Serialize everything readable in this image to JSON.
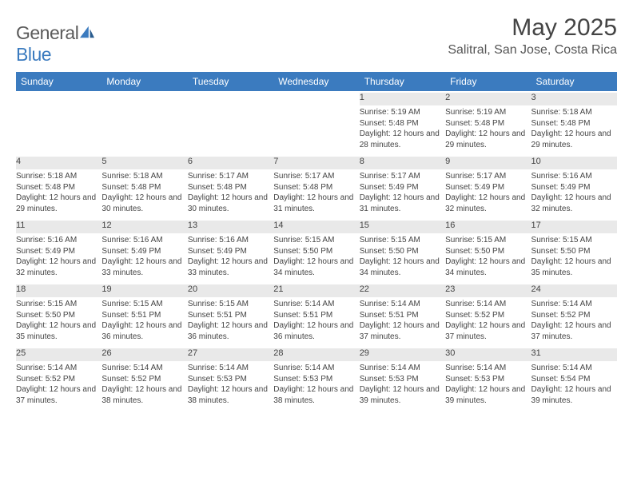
{
  "logo": {
    "text_general": "General",
    "text_blue": "Blue"
  },
  "title": "May 2025",
  "location": "Salitral, San Jose, Costa Rica",
  "colors": {
    "header_bg": "#3b7bbf",
    "header_text": "#ffffff",
    "daynum_bg": "#e9e9e9",
    "text": "#444444",
    "page_bg": "#ffffff"
  },
  "typography": {
    "title_fontsize": 30,
    "location_fontsize": 16,
    "header_fontsize": 12,
    "daynum_fontsize": 11,
    "body_fontsize": 10
  },
  "weekdays": [
    "Sunday",
    "Monday",
    "Tuesday",
    "Wednesday",
    "Thursday",
    "Friday",
    "Saturday"
  ],
  "weeks": [
    [
      null,
      null,
      null,
      null,
      {
        "n": "1",
        "sr": "Sunrise: 5:19 AM",
        "ss": "Sunset: 5:48 PM",
        "dl": "Daylight: 12 hours and 28 minutes."
      },
      {
        "n": "2",
        "sr": "Sunrise: 5:19 AM",
        "ss": "Sunset: 5:48 PM",
        "dl": "Daylight: 12 hours and 29 minutes."
      },
      {
        "n": "3",
        "sr": "Sunrise: 5:18 AM",
        "ss": "Sunset: 5:48 PM",
        "dl": "Daylight: 12 hours and 29 minutes."
      }
    ],
    [
      {
        "n": "4",
        "sr": "Sunrise: 5:18 AM",
        "ss": "Sunset: 5:48 PM",
        "dl": "Daylight: 12 hours and 29 minutes."
      },
      {
        "n": "5",
        "sr": "Sunrise: 5:18 AM",
        "ss": "Sunset: 5:48 PM",
        "dl": "Daylight: 12 hours and 30 minutes."
      },
      {
        "n": "6",
        "sr": "Sunrise: 5:17 AM",
        "ss": "Sunset: 5:48 PM",
        "dl": "Daylight: 12 hours and 30 minutes."
      },
      {
        "n": "7",
        "sr": "Sunrise: 5:17 AM",
        "ss": "Sunset: 5:48 PM",
        "dl": "Daylight: 12 hours and 31 minutes."
      },
      {
        "n": "8",
        "sr": "Sunrise: 5:17 AM",
        "ss": "Sunset: 5:49 PM",
        "dl": "Daylight: 12 hours and 31 minutes."
      },
      {
        "n": "9",
        "sr": "Sunrise: 5:17 AM",
        "ss": "Sunset: 5:49 PM",
        "dl": "Daylight: 12 hours and 32 minutes."
      },
      {
        "n": "10",
        "sr": "Sunrise: 5:16 AM",
        "ss": "Sunset: 5:49 PM",
        "dl": "Daylight: 12 hours and 32 minutes."
      }
    ],
    [
      {
        "n": "11",
        "sr": "Sunrise: 5:16 AM",
        "ss": "Sunset: 5:49 PM",
        "dl": "Daylight: 12 hours and 32 minutes."
      },
      {
        "n": "12",
        "sr": "Sunrise: 5:16 AM",
        "ss": "Sunset: 5:49 PM",
        "dl": "Daylight: 12 hours and 33 minutes."
      },
      {
        "n": "13",
        "sr": "Sunrise: 5:16 AM",
        "ss": "Sunset: 5:49 PM",
        "dl": "Daylight: 12 hours and 33 minutes."
      },
      {
        "n": "14",
        "sr": "Sunrise: 5:15 AM",
        "ss": "Sunset: 5:50 PM",
        "dl": "Daylight: 12 hours and 34 minutes."
      },
      {
        "n": "15",
        "sr": "Sunrise: 5:15 AM",
        "ss": "Sunset: 5:50 PM",
        "dl": "Daylight: 12 hours and 34 minutes."
      },
      {
        "n": "16",
        "sr": "Sunrise: 5:15 AM",
        "ss": "Sunset: 5:50 PM",
        "dl": "Daylight: 12 hours and 34 minutes."
      },
      {
        "n": "17",
        "sr": "Sunrise: 5:15 AM",
        "ss": "Sunset: 5:50 PM",
        "dl": "Daylight: 12 hours and 35 minutes."
      }
    ],
    [
      {
        "n": "18",
        "sr": "Sunrise: 5:15 AM",
        "ss": "Sunset: 5:50 PM",
        "dl": "Daylight: 12 hours and 35 minutes."
      },
      {
        "n": "19",
        "sr": "Sunrise: 5:15 AM",
        "ss": "Sunset: 5:51 PM",
        "dl": "Daylight: 12 hours and 36 minutes."
      },
      {
        "n": "20",
        "sr": "Sunrise: 5:15 AM",
        "ss": "Sunset: 5:51 PM",
        "dl": "Daylight: 12 hours and 36 minutes."
      },
      {
        "n": "21",
        "sr": "Sunrise: 5:14 AM",
        "ss": "Sunset: 5:51 PM",
        "dl": "Daylight: 12 hours and 36 minutes."
      },
      {
        "n": "22",
        "sr": "Sunrise: 5:14 AM",
        "ss": "Sunset: 5:51 PM",
        "dl": "Daylight: 12 hours and 37 minutes."
      },
      {
        "n": "23",
        "sr": "Sunrise: 5:14 AM",
        "ss": "Sunset: 5:52 PM",
        "dl": "Daylight: 12 hours and 37 minutes."
      },
      {
        "n": "24",
        "sr": "Sunrise: 5:14 AM",
        "ss": "Sunset: 5:52 PM",
        "dl": "Daylight: 12 hours and 37 minutes."
      }
    ],
    [
      {
        "n": "25",
        "sr": "Sunrise: 5:14 AM",
        "ss": "Sunset: 5:52 PM",
        "dl": "Daylight: 12 hours and 37 minutes."
      },
      {
        "n": "26",
        "sr": "Sunrise: 5:14 AM",
        "ss": "Sunset: 5:52 PM",
        "dl": "Daylight: 12 hours and 38 minutes."
      },
      {
        "n": "27",
        "sr": "Sunrise: 5:14 AM",
        "ss": "Sunset: 5:53 PM",
        "dl": "Daylight: 12 hours and 38 minutes."
      },
      {
        "n": "28",
        "sr": "Sunrise: 5:14 AM",
        "ss": "Sunset: 5:53 PM",
        "dl": "Daylight: 12 hours and 38 minutes."
      },
      {
        "n": "29",
        "sr": "Sunrise: 5:14 AM",
        "ss": "Sunset: 5:53 PM",
        "dl": "Daylight: 12 hours and 39 minutes."
      },
      {
        "n": "30",
        "sr": "Sunrise: 5:14 AM",
        "ss": "Sunset: 5:53 PM",
        "dl": "Daylight: 12 hours and 39 minutes."
      },
      {
        "n": "31",
        "sr": "Sunrise: 5:14 AM",
        "ss": "Sunset: 5:54 PM",
        "dl": "Daylight: 12 hours and 39 minutes."
      }
    ]
  ]
}
